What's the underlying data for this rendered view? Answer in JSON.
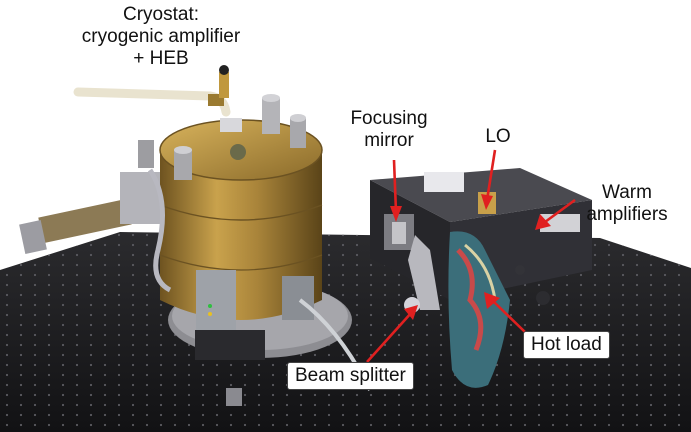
{
  "figure": {
    "description_free": true,
    "annotations": {
      "cryostat": {
        "line1": "Cryostat:",
        "line2": "cryogenic amplifier",
        "line3": "+ HEB"
      },
      "focusing_mirror": {
        "line1": "Focusing",
        "line2": "mirror"
      },
      "lo": {
        "text": "LO"
      },
      "warm_amplifiers": {
        "line1": "Warm",
        "line2": "amplifiers"
      },
      "hot_load": {
        "text": "Hot load"
      },
      "beam_splitter": {
        "text": "Beam splitter"
      }
    },
    "colors": {
      "arrow": "#e02020",
      "brass": "#b8903a",
      "table": "#1c1c1e"
    }
  }
}
